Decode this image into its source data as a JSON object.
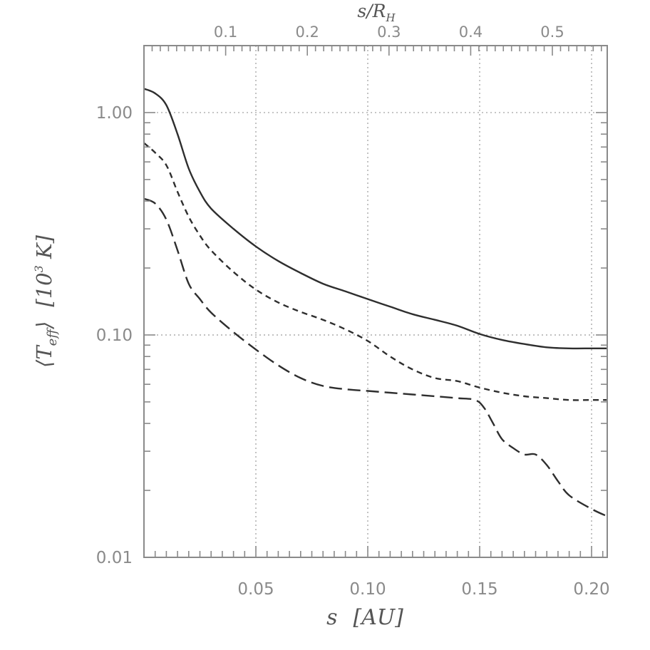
{
  "chart_data": {
    "type": "line",
    "xlabel_var": "s",
    "xlabel_unit": "[AU]",
    "ylabel_main": "⟨T",
    "ylabel_sub": "eff",
    "ylabel_unit": "[10",
    "ylabel_sup": "3",
    "ylabel_unit_end": " K]",
    "top_label_num": "s/R",
    "top_label_sub": "H",
    "xlim": [
      0.0,
      0.207
    ],
    "ylim": [
      0.01,
      2.0
    ],
    "yscale": "log",
    "top_axis_factor": 2.74,
    "x_ticks": [
      "0.05",
      "0.10",
      "0.15",
      "0.20"
    ],
    "x_tick_values": [
      0.05,
      0.1,
      0.15,
      0.2
    ],
    "top_ticks": [
      "0.1",
      "0.2",
      "0.3",
      "0.4",
      "0.5"
    ],
    "top_tick_values": [
      0.1,
      0.2,
      0.3,
      0.4,
      0.5
    ],
    "y_ticks": [
      "0.01",
      "0.10",
      "1.00"
    ],
    "y_tick_values": [
      0.01,
      0.1,
      1.0
    ],
    "grid": "dotted at major ticks",
    "series": [
      {
        "style": "solid",
        "x": [
          0.0,
          0.005,
          0.01,
          0.015,
          0.02,
          0.025,
          0.03,
          0.04,
          0.05,
          0.06,
          0.07,
          0.08,
          0.09,
          0.1,
          0.11,
          0.12,
          0.13,
          0.14,
          0.15,
          0.16,
          0.17,
          0.18,
          0.19,
          0.2,
          0.207
        ],
        "y": [
          1.28,
          1.22,
          1.08,
          0.8,
          0.56,
          0.44,
          0.37,
          0.3,
          0.25,
          0.215,
          0.19,
          0.17,
          0.157,
          0.145,
          0.134,
          0.124,
          0.117,
          0.11,
          0.101,
          0.095,
          0.091,
          0.088,
          0.087,
          0.087,
          0.087
        ]
      },
      {
        "style": "short-dashed",
        "x": [
          0.0,
          0.005,
          0.01,
          0.015,
          0.02,
          0.025,
          0.03,
          0.04,
          0.05,
          0.06,
          0.07,
          0.08,
          0.09,
          0.1,
          0.11,
          0.12,
          0.13,
          0.14,
          0.15,
          0.16,
          0.17,
          0.18,
          0.19,
          0.2,
          0.207
        ],
        "y": [
          0.73,
          0.66,
          0.58,
          0.44,
          0.34,
          0.28,
          0.24,
          0.192,
          0.16,
          0.14,
          0.127,
          0.117,
          0.106,
          0.094,
          0.08,
          0.07,
          0.064,
          0.062,
          0.058,
          0.055,
          0.053,
          0.052,
          0.051,
          0.051,
          0.051
        ]
      },
      {
        "style": "long-dashed",
        "x": [
          0.0,
          0.005,
          0.01,
          0.015,
          0.02,
          0.025,
          0.03,
          0.04,
          0.05,
          0.06,
          0.07,
          0.08,
          0.09,
          0.1,
          0.11,
          0.12,
          0.13,
          0.14,
          0.148,
          0.152,
          0.156,
          0.16,
          0.165,
          0.17,
          0.175,
          0.18,
          0.185,
          0.19,
          0.2,
          0.207
        ],
        "y": [
          0.41,
          0.39,
          0.33,
          0.24,
          0.17,
          0.145,
          0.126,
          0.103,
          0.086,
          0.073,
          0.064,
          0.059,
          0.057,
          0.056,
          0.055,
          0.054,
          0.053,
          0.052,
          0.051,
          0.047,
          0.04,
          0.034,
          0.031,
          0.029,
          0.029,
          0.026,
          0.022,
          0.019,
          0.0165,
          0.0153
        ]
      }
    ]
  }
}
